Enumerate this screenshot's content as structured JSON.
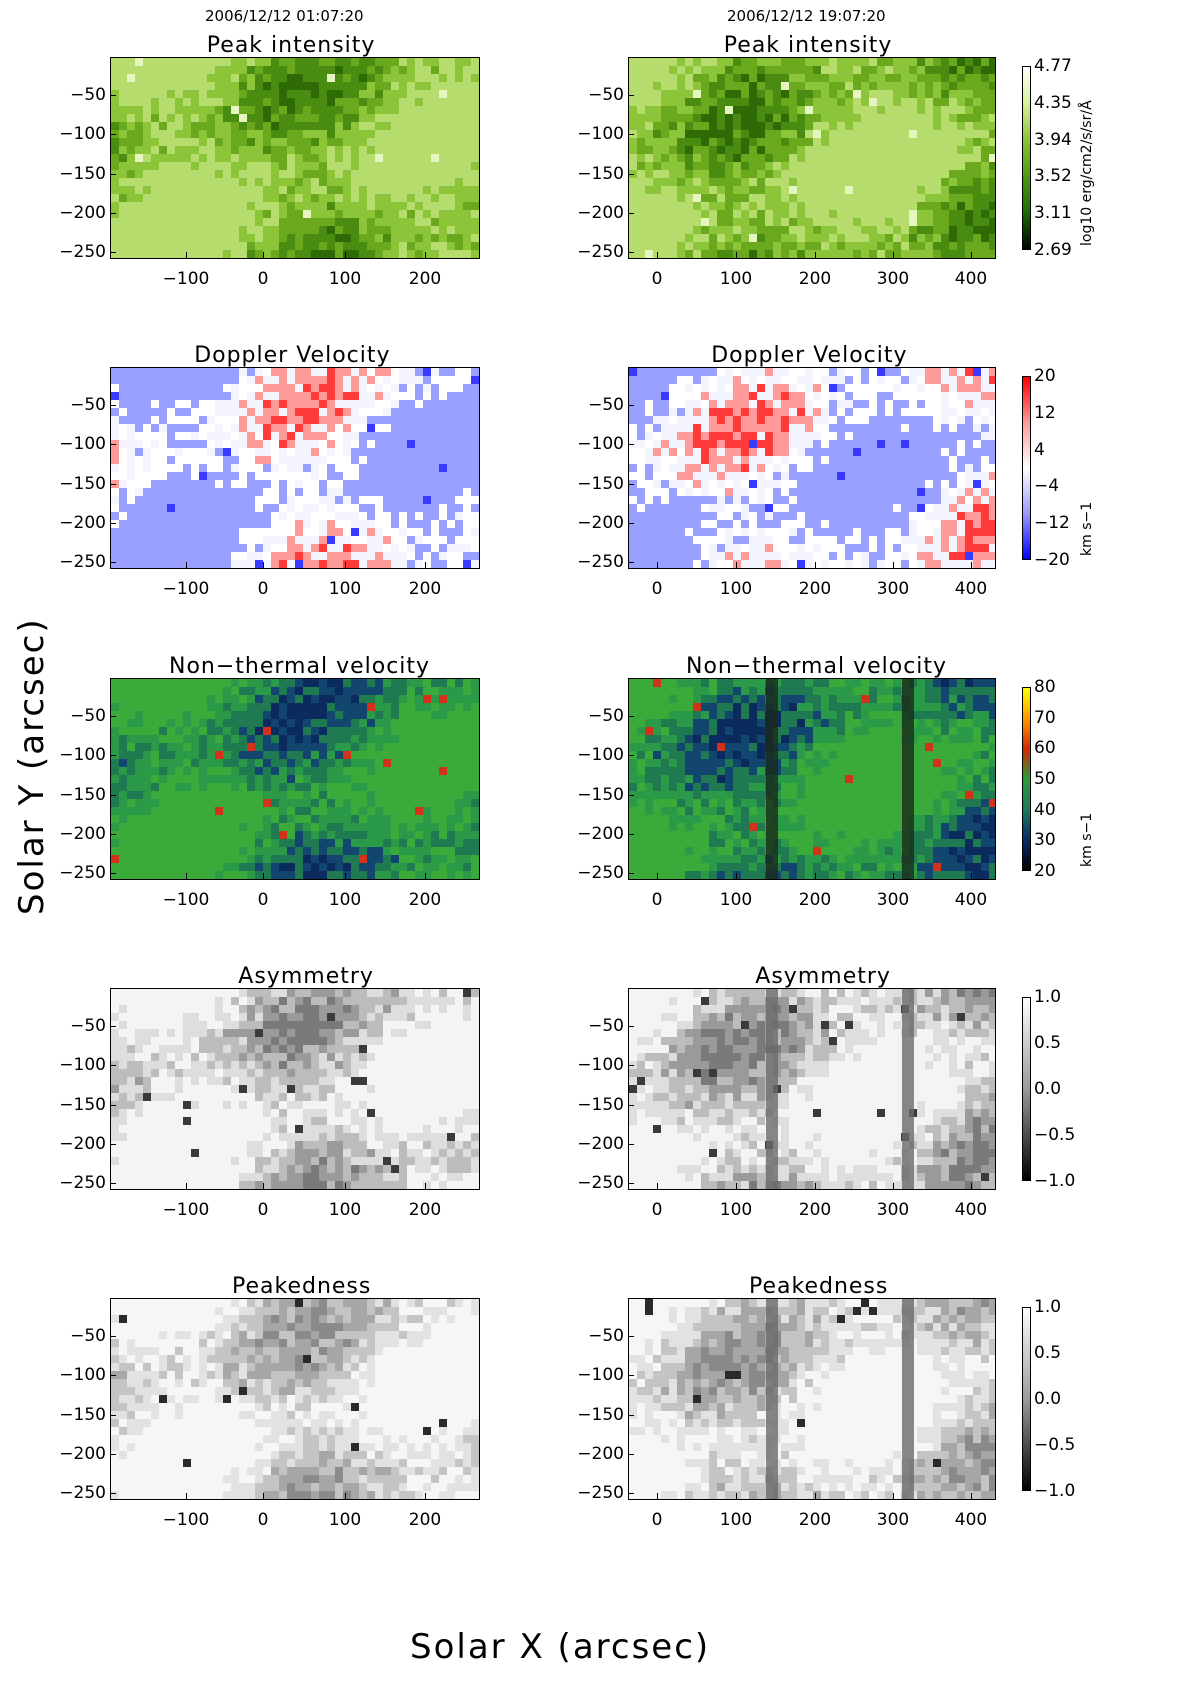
{
  "dates": [
    "2006/12/12 01:07:20",
    "2006/12/12 19:07:20"
  ],
  "rows": [
    {
      "id": "peak-intensity",
      "title": "Peak intensity",
      "colorbar": {
        "ticks": [
          "4.77",
          "4.35",
          "3.94",
          "3.52",
          "3.11",
          "2.69"
        ],
        "unit": "log10 erg/cm2/s/sr/Å",
        "gradient": [
          "#ffffff",
          "#d9f09a",
          "#8cc43a",
          "#4e9a12",
          "#1f6a04",
          "#000000"
        ]
      }
    },
    {
      "id": "doppler-velocity",
      "title": "Doppler Velocity",
      "colorbar": {
        "ticks": [
          "20",
          "12",
          "4",
          "−4",
          "−12",
          "−20"
        ],
        "unit": "km s−1",
        "gradient": [
          "#ff0000",
          "#ff9a9a",
          "#ffffff",
          "#9a9aff",
          "#0000ff"
        ]
      }
    },
    {
      "id": "non-thermal-velocity",
      "title": "Non−thermal velocity",
      "colorbar": {
        "ticks": [
          "80",
          "70",
          "60",
          "50",
          "40",
          "30",
          "20"
        ],
        "unit": "km s−1",
        "gradient": [
          "#ffff00",
          "#ff9900",
          "#d22a00",
          "#2c9b3a",
          "#1e7a5a",
          "#0a2a6a",
          "#000000"
        ]
      }
    },
    {
      "id": "asymmetry",
      "title": "Asymmetry",
      "colorbar": {
        "ticks": [
          "1.0",
          "0.5",
          "0.0",
          "−0.5",
          "−1.0"
        ],
        "unit": "",
        "gradient": [
          "#ffffff",
          "#9a9a9a",
          "#000000"
        ]
      }
    },
    {
      "id": "peakedness",
      "title": "Peakedness",
      "colorbar": {
        "ticks": [
          "1.0",
          "0.5",
          "0.0",
          "−0.5",
          "−1.0"
        ],
        "unit": "",
        "gradient": [
          "#ffffff",
          "#9a9a9a",
          "#000000"
        ]
      }
    }
  ],
  "y_ticks": [
    "−50",
    "−100",
    "−150",
    "−200",
    "−250"
  ],
  "x_ticks_left": [
    "−100",
    "0",
    "100",
    "200"
  ],
  "x_ticks_right": [
    "0",
    "100",
    "200",
    "300",
    "400"
  ],
  "y_axis_label": "Solar Y (arcsec)",
  "x_axis_label": "Solar X (arcsec)",
  "panel_palettes": {
    "peak-intensity": [
      "#2e6a06",
      "#4a8c12",
      "#6aa81e",
      "#8cc43a",
      "#b6dc6e",
      "#e6f6c0"
    ],
    "doppler-velocity": [
      "#ff3a3a",
      "#ff9a9a",
      "#f4f4ff",
      "#ffffff",
      "#9aa0ff",
      "#3a3aff"
    ],
    "non-thermal-velocity": [
      "#0b2a5e",
      "#12466e",
      "#1f7a52",
      "#2a9a48",
      "#3aaa3a",
      "#d2321a"
    ],
    "asymmetry": [
      "#7a7a7a",
      "#9a9a9a",
      "#bcbcbc",
      "#dedede",
      "#f4f4f4",
      "#3a3a3a"
    ],
    "peakedness": [
      "#8a8a8a",
      "#a6a6a6",
      "#c4c4c4",
      "#e2e2e2",
      "#f6f6f6",
      "#2a2a2a"
    ]
  }
}
